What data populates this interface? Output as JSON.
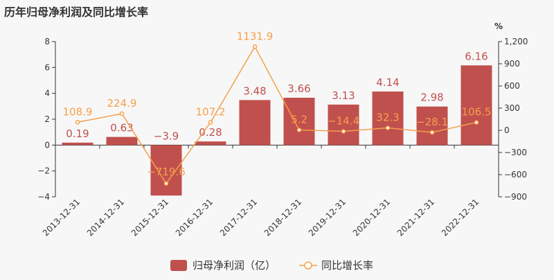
{
  "title": "历年归母净利润及同比增长率",
  "colors": {
    "bar": "#c0504d",
    "line": "#f5a04a",
    "axis": "#333333",
    "grid": "#e6e6e6"
  },
  "chart_data": {
    "type": "bar",
    "categories": [
      "2013-12-31",
      "2014-12-31",
      "2015-12-31",
      "2016-12-31",
      "2017-12-31",
      "2018-12-31",
      "2019-12-31",
      "2020-12-31",
      "2021-12-31",
      "2022-12-31"
    ],
    "series": [
      {
        "name": "归母净利润（亿）",
        "type": "bar",
        "axis": "left",
        "values": [
          0.19,
          0.63,
          -3.9,
          0.28,
          3.48,
          3.66,
          3.13,
          4.14,
          2.98,
          6.16
        ],
        "labels": [
          "0.19",
          "0.63",
          "−3.9",
          "0.28",
          "3.48",
          "3.66",
          "3.13",
          "4.14",
          "2.98",
          "6.16"
        ]
      },
      {
        "name": "同比增长率",
        "type": "line",
        "axis": "right",
        "values": [
          108.9,
          224.9,
          -719.6,
          107.2,
          1131.9,
          5.2,
          -14.4,
          32.3,
          -28.1,
          106.5
        ],
        "labels": [
          "108.9",
          "224.9",
          "−719.6",
          "107.2",
          "1131.9",
          "5.2",
          "−14.4",
          "32.3",
          "−28.1",
          "106.5"
        ]
      }
    ],
    "y_left": {
      "min": -4,
      "max": 8,
      "ticks": [
        -4,
        -2,
        0,
        2,
        4,
        6,
        8
      ],
      "tick_labels": [
        "−4",
        "−2",
        "0",
        "2",
        "4",
        "6",
        "8"
      ]
    },
    "y_right": {
      "unit": "%",
      "min": -900,
      "max": 1200,
      "ticks": [
        -900,
        -600,
        -300,
        0,
        300,
        600,
        900,
        1200
      ],
      "tick_labels": [
        "−900",
        "−600",
        "−300",
        "0",
        "300",
        "600",
        "900",
        "1,200"
      ]
    },
    "legend_position": "bottom-center",
    "grid": false
  }
}
